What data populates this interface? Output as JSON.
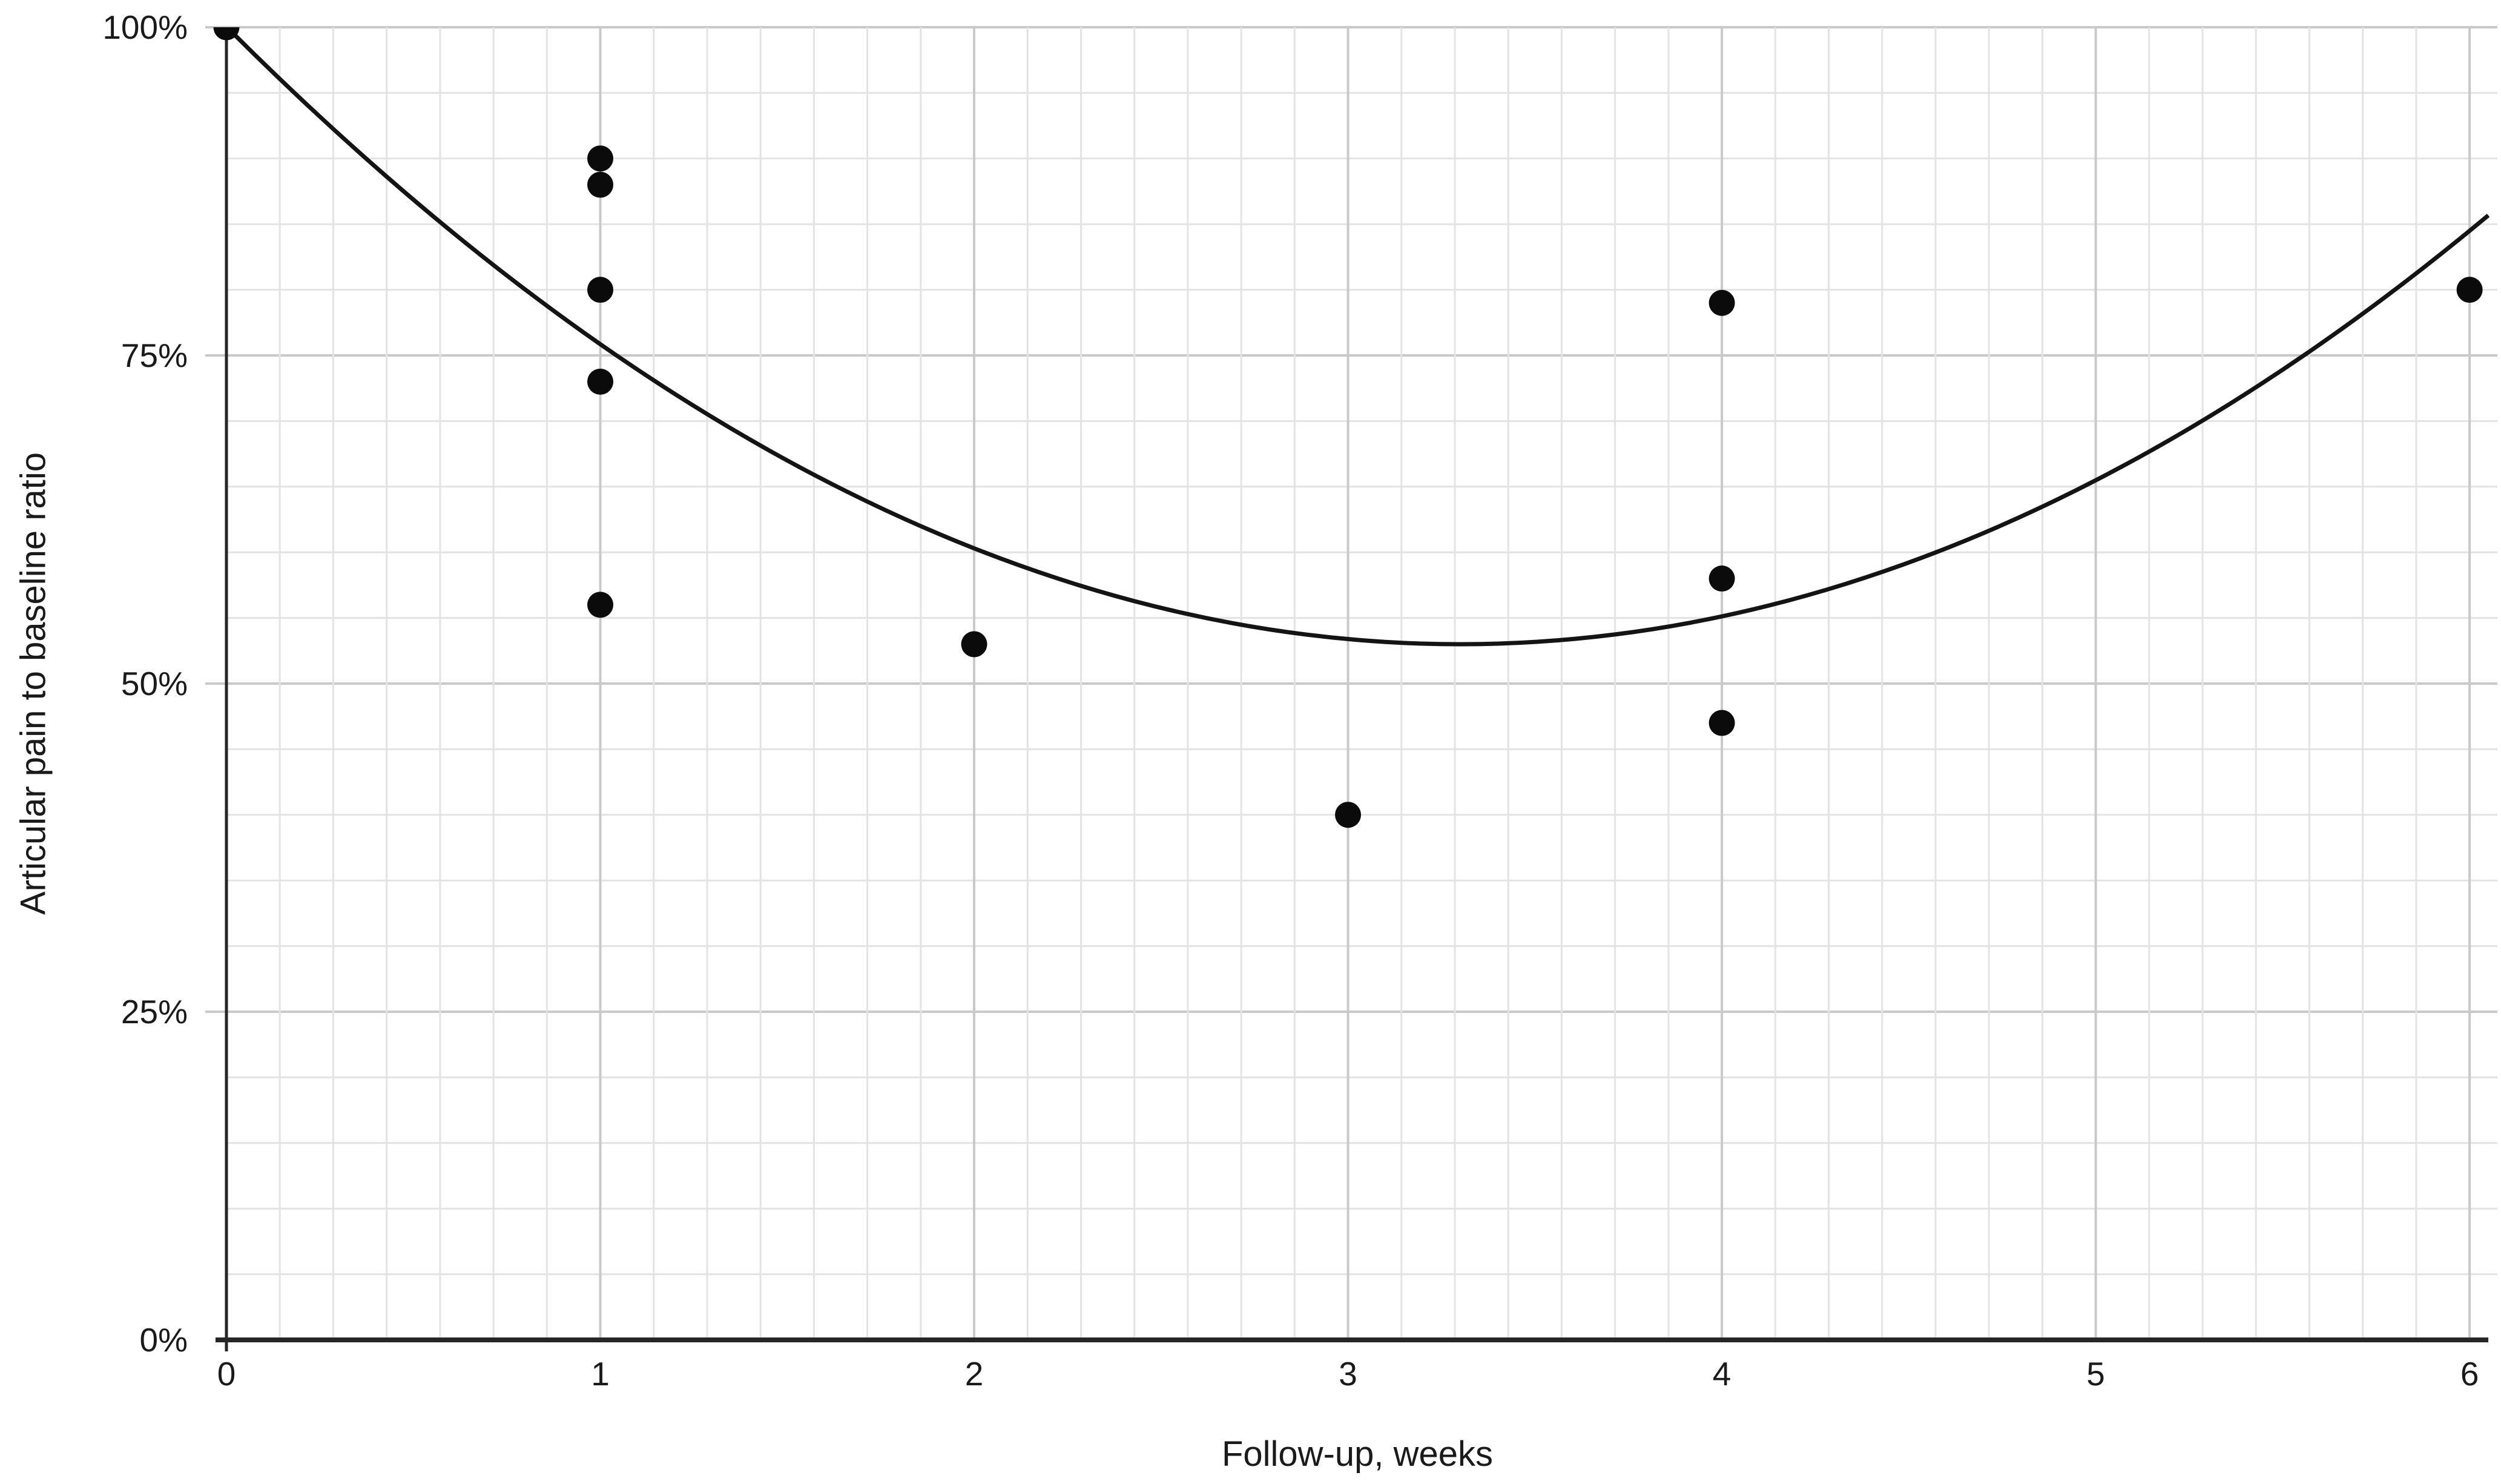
{
  "chart_data": {
    "type": "scatter",
    "title": "",
    "xlabel": "Follow-up, weeks",
    "ylabel": "Articular pain to baseline ratio",
    "xlim": [
      0,
      6.05
    ],
    "ylim": [
      0,
      100
    ],
    "y_unit": "percent",
    "legend": "none",
    "grid": {
      "shown": true,
      "x_major_step": 1,
      "x_minor_divisions_per_unit": 7,
      "y_major_step_pct": 25,
      "y_minor_step_pct": 5
    },
    "x_ticks": [
      {
        "value": 0,
        "label": "0"
      },
      {
        "value": 1,
        "label": "1"
      },
      {
        "value": 2,
        "label": "2"
      },
      {
        "value": 3,
        "label": "3"
      },
      {
        "value": 4,
        "label": "4"
      },
      {
        "value": 5,
        "label": "5"
      },
      {
        "value": 6,
        "label": "6"
      }
    ],
    "y_ticks": [
      {
        "value": 100,
        "label": "100%"
      },
      {
        "value": 75,
        "label": "75%"
      },
      {
        "value": 50,
        "label": "50%"
      },
      {
        "value": 25,
        "label": "25%"
      },
      {
        "value": 0,
        "label": "0%"
      }
    ],
    "points": [
      {
        "x": 0,
        "y": 100
      },
      {
        "x": 1,
        "y": 90
      },
      {
        "x": 1,
        "y": 88
      },
      {
        "x": 1,
        "y": 80
      },
      {
        "x": 1,
        "y": 73
      },
      {
        "x": 1,
        "y": 56
      },
      {
        "x": 2,
        "y": 53
      },
      {
        "x": 3,
        "y": 40
      },
      {
        "x": 4,
        "y": 79
      },
      {
        "x": 4,
        "y": 58
      },
      {
        "x": 4,
        "y": 47
      },
      {
        "x": 6,
        "y": 80
      }
    ],
    "trendline": {
      "type": "quadratic",
      "equation": "ratio% = 4.32·(weeks − 3.3)² + 53",
      "a": 4.32,
      "vertex_x": 3.3,
      "vertex_y_pct": 53,
      "x_start": 0,
      "x_end": 6.05
    },
    "colors": {
      "background": "#ffffff",
      "point": "#0b0b0b",
      "trend_line": "#141414",
      "axis_line": "#262626",
      "grid_minor": "#e3e3e3",
      "grid_major": "#c9c9c9",
      "tick_label": "#1a1a1a",
      "axis_title": "#1a1a1a"
    }
  }
}
